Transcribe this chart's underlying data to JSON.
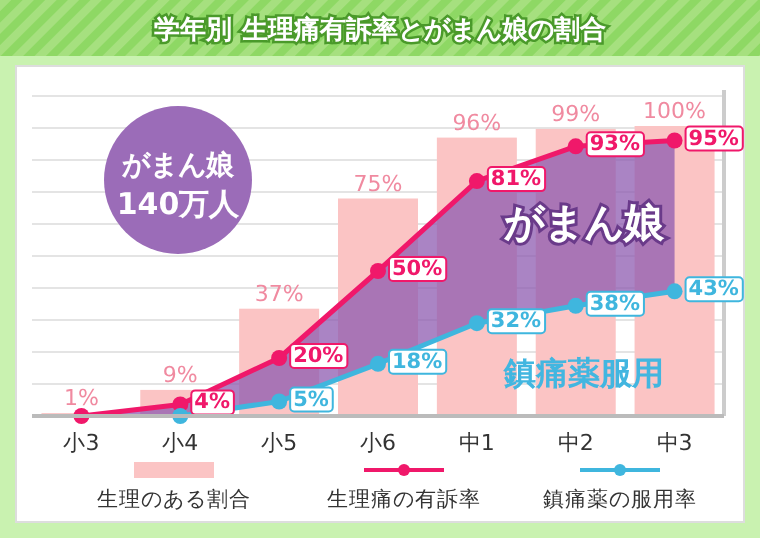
{
  "chart_data": {
    "type": "bar",
    "title": "学年別 生理痛有訴率とがまん娘の割合",
    "categories": [
      "小3",
      "小4",
      "小5",
      "小6",
      "中1",
      "中2",
      "中3"
    ],
    "series": [
      {
        "name": "生理のある割合",
        "color": "#fbc4c4",
        "values": [
          1,
          9,
          37,
          75,
          96,
          99,
          100
        ],
        "value_labels": [
          "1%",
          "9%",
          "37%",
          "75%",
          "96%",
          "99%",
          "100%"
        ]
      },
      {
        "name": "生理痛の有訴率",
        "type": "line",
        "color": "#f0186a",
        "values": [
          0,
          4,
          20,
          50,
          81,
          93,
          95
        ],
        "value_labels": [
          null,
          "4%",
          "20%",
          "50%",
          "81%",
          "93%",
          "95%"
        ],
        "lower": [
          0,
          0,
          5,
          18,
          32,
          38,
          43
        ],
        "upper": [
          0,
          4,
          20,
          50,
          81,
          93,
          95
        ]
      },
      {
        "name": "鎮痛薬の服用率",
        "type": "line",
        "color": "#3fb6de",
        "values": [
          null,
          0,
          5,
          18,
          32,
          38,
          43
        ],
        "value_labels": [
          null,
          null,
          "5%",
          "18%",
          "32%",
          "38%",
          "43%"
        ]
      }
    ],
    "annotations": [
      "がまん娘\n140万人",
      "がまん娘",
      "鎮痛薬服用"
    ],
    "grid": "y",
    "legend": "bottom",
    "marker": "circle"
  }
}
